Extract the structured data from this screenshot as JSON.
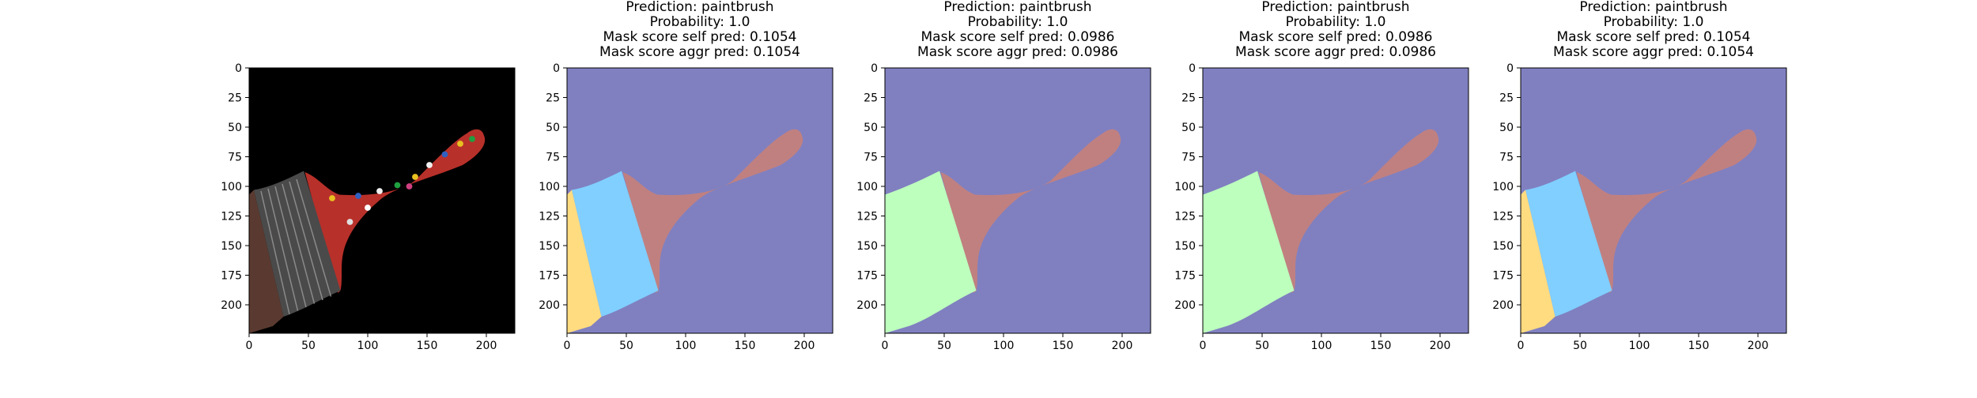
{
  "figure": {
    "background": "#ffffff",
    "panels": [
      {
        "title_lines": []
      },
      {
        "title_lines": [
          "Prediction: paintbrush",
          "Probability: 1.0",
          "Mask score self pred: 0.1054",
          "Mask score aggr pred: 0.1054"
        ]
      },
      {
        "title_lines": [
          "Prediction: paintbrush",
          "Probability: 1.0",
          "Mask score self pred: 0.0986",
          "Mask score aggr pred: 0.0986"
        ]
      },
      {
        "title_lines": [
          "Prediction: paintbrush",
          "Probability: 1.0",
          "Mask score self pred: 0.0986",
          "Mask score aggr pred: 0.0986"
        ]
      },
      {
        "title_lines": [
          "Prediction: paintbrush",
          "Probability: 1.0",
          "Mask score self pred: 0.1054",
          "Mask score aggr pred: 0.1054"
        ]
      }
    ]
  },
  "chart_data": [
    {
      "type": "image",
      "content": "photo of a paint-splattered paintbrush on black background",
      "x_ticks": [
        0,
        50,
        100,
        150,
        200
      ],
      "y_ticks": [
        0,
        25,
        50,
        75,
        100,
        125,
        150,
        175,
        200
      ],
      "xlim": [
        0,
        224
      ],
      "ylim": [
        224,
        0
      ],
      "colors": {
        "background": "#000000",
        "handle": "#b8302a",
        "ferrule": "#4a4a4a",
        "bristles": "#5a3a30"
      }
    },
    {
      "type": "segmentation_mask",
      "x_ticks": [
        0,
        50,
        100,
        150,
        200
      ],
      "y_ticks": [
        0,
        25,
        50,
        75,
        100,
        125,
        150,
        175,
        200
      ],
      "xlim": [
        0,
        224
      ],
      "ylim": [
        224,
        0
      ],
      "regions": [
        {
          "label": "background",
          "color": "#8080c0"
        },
        {
          "label": "handle",
          "color": "#c08080"
        },
        {
          "label": "ferrule",
          "color": "#80cfff"
        },
        {
          "label": "bristles",
          "color": "#ffdc80"
        }
      ]
    },
    {
      "type": "segmentation_mask",
      "x_ticks": [
        0,
        50,
        100,
        150,
        200
      ],
      "y_ticks": [
        0,
        25,
        50,
        75,
        100,
        125,
        150,
        175,
        200
      ],
      "xlim": [
        0,
        224
      ],
      "ylim": [
        224,
        0
      ],
      "regions": [
        {
          "label": "background",
          "color": "#8080c0"
        },
        {
          "label": "handle",
          "color": "#c08080"
        },
        {
          "label": "head",
          "color": "#bdffbd"
        }
      ]
    },
    {
      "type": "segmentation_mask",
      "x_ticks": [
        0,
        50,
        100,
        150,
        200
      ],
      "y_ticks": [
        0,
        25,
        50,
        75,
        100,
        125,
        150,
        175,
        200
      ],
      "xlim": [
        0,
        224
      ],
      "ylim": [
        224,
        0
      ],
      "regions": [
        {
          "label": "background",
          "color": "#8080c0"
        },
        {
          "label": "handle",
          "color": "#c08080"
        },
        {
          "label": "head",
          "color": "#bdffbd"
        }
      ]
    },
    {
      "type": "segmentation_mask",
      "x_ticks": [
        0,
        50,
        100,
        150,
        200
      ],
      "y_ticks": [
        0,
        25,
        50,
        75,
        100,
        125,
        150,
        175,
        200
      ],
      "xlim": [
        0,
        224
      ],
      "ylim": [
        224,
        0
      ],
      "regions": [
        {
          "label": "background",
          "color": "#8080c0"
        },
        {
          "label": "handle",
          "color": "#c08080"
        },
        {
          "label": "ferrule",
          "color": "#80cfff"
        },
        {
          "label": "bristles",
          "color": "#ffdc80"
        }
      ]
    }
  ]
}
